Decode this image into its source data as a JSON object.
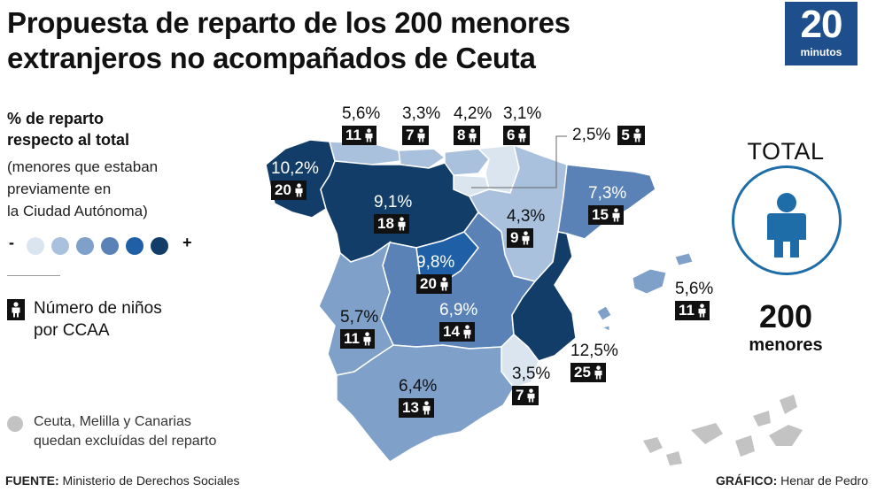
{
  "header": {
    "title_line1": "Propuesta de reparto de los 200 menores",
    "title_line2": "extranjeros no acompañados de Ceuta",
    "logo_number": "20",
    "logo_word": "minutos"
  },
  "legend": {
    "title_line1": "% de reparto",
    "title_line2": "respecto al total",
    "note_line1": "(menores que estaban",
    "note_line2": "previamente en",
    "note_line3": "la Ciudad Autónoma)",
    "scale_min": "-",
    "scale_max": "+",
    "scale_colors": [
      "#dbe5f0",
      "#aac1de",
      "#7fa0c8",
      "#5a82b6",
      "#1f5fa6",
      "#123d69"
    ],
    "kid_line1": "Número de niños",
    "kid_line2": "por CCAA",
    "excluded_line1": "Ceuta, Melilla y Canarias",
    "excluded_line2": "quedan excluídas del reparto",
    "excluded_color": "#c3c3c3"
  },
  "regions": {
    "galicia": {
      "pct": "10,2%",
      "count": "20"
    },
    "asturias": {
      "pct": "5,6%",
      "count": "11"
    },
    "cantabria": {
      "pct": "3,3%",
      "count": "7"
    },
    "pais_vasco": {
      "pct": "4,2%",
      "count": "8"
    },
    "navarra": {
      "pct": "3,1%",
      "count": "6"
    },
    "la_rioja": {
      "pct": "2,5%",
      "count": "5"
    },
    "castilla_leon": {
      "pct": "9,1%",
      "count": "18"
    },
    "aragon": {
      "pct": "4,3%",
      "count": "9"
    },
    "cataluna": {
      "pct": "7,3%",
      "count": "15"
    },
    "madrid": {
      "pct": "9,8%",
      "count": "20"
    },
    "castilla_la_mancha": {
      "pct": "6,9%",
      "count": "14"
    },
    "extremadura": {
      "pct": "5,7%",
      "count": "11"
    },
    "valencia": {
      "pct": "12,5%",
      "count": "25"
    },
    "murcia": {
      "pct": "3,5%",
      "count": "7"
    },
    "andalucia": {
      "pct": "6,4%",
      "count": "13"
    },
    "baleares": {
      "pct": "5,6%",
      "count": "11"
    }
  },
  "total": {
    "title": "TOTAL",
    "number": "200",
    "unit": "menores",
    "accent": "#1e6ca8"
  },
  "footer": {
    "source_label": "FUENTE:",
    "source_text": " Ministerio de Derechos Sociales",
    "credit_label": "GRÁFICO:",
    "credit_text": " Henar de Pedro"
  }
}
